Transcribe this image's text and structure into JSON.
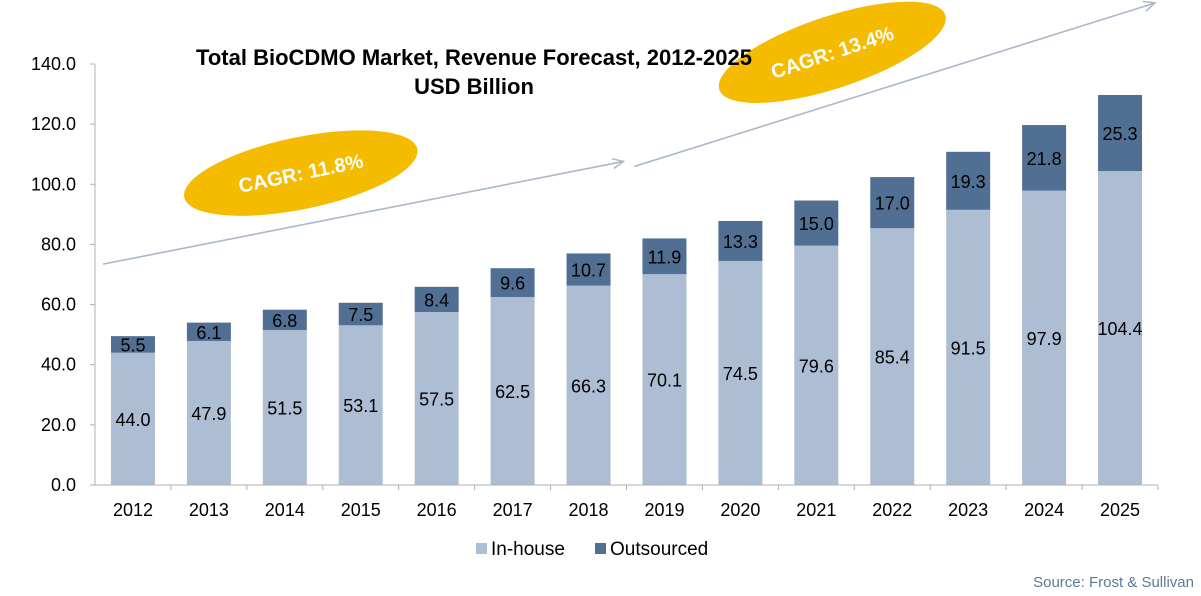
{
  "chart_data": {
    "type": "bar",
    "stacked": true,
    "title": "Total BioCDMO Market, Revenue Forecast, 2012-2025",
    "subtitle": "USD Billion",
    "categories": [
      "2012",
      "2013",
      "2014",
      "2015",
      "2016",
      "2017",
      "2018",
      "2019",
      "2020",
      "2021",
      "2022",
      "2023",
      "2024",
      "2025"
    ],
    "series": [
      {
        "name": "In-house",
        "color": "#adbdd4",
        "values": [
          44.0,
          47.9,
          51.5,
          53.1,
          57.5,
          62.5,
          66.3,
          70.1,
          74.5,
          79.6,
          85.4,
          91.5,
          97.9,
          104.4
        ],
        "labels": [
          "44.0",
          "47.9",
          "51.5",
          "53.1",
          "57.5",
          "62.5",
          "66.3",
          "70.1",
          "74.5",
          "79.6",
          "85.4",
          "91.5",
          "97.9",
          "104.4"
        ]
      },
      {
        "name": "Outsourced",
        "color": "#516f93",
        "values": [
          5.5,
          6.1,
          6.8,
          7.5,
          8.4,
          9.6,
          10.7,
          11.9,
          13.3,
          15.0,
          17.0,
          19.3,
          21.8,
          25.3
        ],
        "labels": [
          "5.5",
          "6.1",
          "6.8",
          "7.5",
          "8.4",
          "9.6",
          "10.7",
          "11.9",
          "13.3",
          "15.0",
          "17.0",
          "19.3",
          "21.8",
          "25.3"
        ]
      }
    ],
    "ylim": [
      0,
      140
    ],
    "yticks": [
      "0.0",
      "20.0",
      "40.0",
      "60.0",
      "80.0",
      "100.0",
      "120.0",
      "140.0"
    ],
    "xlabel": "",
    "ylabel": "",
    "grid": false,
    "legend_position": "bottom",
    "annotations": [
      {
        "text": "CAGR: 11.8%",
        "from": "2012",
        "to": "2018"
      },
      {
        "text": "CAGR: 13.4%",
        "from": "2019",
        "to": "2025"
      }
    ]
  },
  "colors": {
    "ellipse": "#f5bb00",
    "arrow": "#aab8c8",
    "axis": "#b0b0b0"
  },
  "source": "Source: Frost & Sullivan"
}
